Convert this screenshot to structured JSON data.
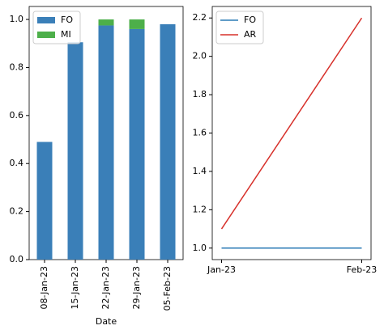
{
  "chart_data": [
    {
      "type": "bar",
      "stacked": true,
      "x_label": "Date",
      "categories": [
        "08-Jan-23",
        "15-Jan-23",
        "22-Jan-23",
        "29-Jan-23",
        "05-Feb-23"
      ],
      "series": [
        {
          "name": "FO",
          "color": "#3a7fb8",
          "values": [
            0.49,
            0.905,
            0.975,
            0.96,
            0.98
          ]
        },
        {
          "name": "MI",
          "color": "#4daf4a",
          "values": [
            0,
            0,
            0.025,
            0.04,
            0
          ]
        }
      ],
      "ylim": [
        0,
        1.054
      ],
      "yticks": [
        {
          "value": 0,
          "label": "0.0"
        },
        0.2,
        0.4,
        0.6,
        0.8,
        {
          "value": 1,
          "label": "1.0"
        }
      ],
      "legend": "upper left"
    },
    {
      "type": "line",
      "categories": [
        "Jan-23",
        "Feb-23"
      ],
      "series": [
        {
          "name": "FO",
          "color": "#2c7bb6",
          "values": [
            1.0,
            1.0
          ]
        },
        {
          "name": "AR",
          "color": "#d7302a",
          "values": [
            1.1,
            2.2
          ]
        }
      ],
      "ylim": [
        0.94,
        2.26
      ],
      "yticks": [
        {
          "value": 1,
          "label": "1.0"
        },
        1.2,
        1.4,
        1.6,
        1.8,
        {
          "value": 2,
          "label": "2.0"
        },
        2.2
      ],
      "legend": "upper left"
    }
  ]
}
